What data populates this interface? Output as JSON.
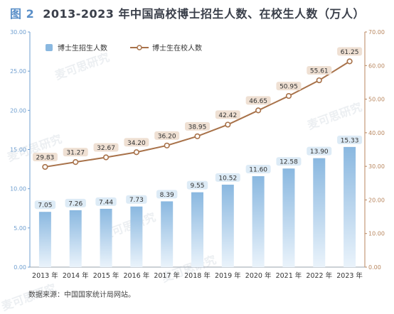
{
  "figure_label": "图 2",
  "title": "2013-2023 年中国高校博士招生人数、在校生人数（万人）",
  "source": "数据来源：中国国家统计局网站。",
  "watermark": "麦可思研究",
  "colors": {
    "bar_top": "#8ab8e0",
    "bar_bottom": "#eaf3fb",
    "line": "#a8724a",
    "label_blue_bg": "#ddebf6",
    "label_tan_bg": "#efe0d3",
    "left_axis": "#6f9fd0",
    "right_axis": "#b8865e"
  },
  "chart_data": {
    "type": "bar+line",
    "categories": [
      "2013 年",
      "2014 年",
      "2015 年",
      "2016 年",
      "2017 年",
      "2018 年",
      "2019 年",
      "2020 年",
      "2021 年",
      "2022 年",
      "2023 年"
    ],
    "series": [
      {
        "name": "博士生招生人数",
        "type": "bar",
        "axis": "left",
        "values": [
          7.05,
          7.26,
          7.44,
          7.73,
          8.39,
          9.55,
          10.52,
          11.6,
          12.58,
          13.9,
          15.33
        ],
        "labels": [
          "7.05",
          "7.26",
          "7.44",
          "7.73",
          "8.39",
          "9.55",
          "10.52",
          "11.60",
          "12.58",
          "13.90",
          "15.33"
        ]
      },
      {
        "name": "博士生在校人数",
        "type": "line",
        "axis": "right",
        "values": [
          29.83,
          31.27,
          32.67,
          34.2,
          36.2,
          38.95,
          42.42,
          46.65,
          50.95,
          55.61,
          61.25
        ],
        "labels": [
          "29.83",
          "31.27",
          "32.67",
          "34.20",
          "36.20",
          "38.95",
          "42.42",
          "46.65",
          "50.95",
          "55.61",
          "61.25"
        ]
      }
    ],
    "left_axis": {
      "ylim": [
        0,
        30
      ],
      "ticks": [
        "0.00",
        "5.00",
        "10.00",
        "15.00",
        "20.00",
        "25.00",
        "30.00"
      ]
    },
    "right_axis": {
      "ylim": [
        0,
        70
      ],
      "ticks": [
        "0.00",
        "10.00",
        "20.00",
        "30.00",
        "40.00",
        "50.00",
        "60.00",
        "70.00"
      ]
    },
    "grid": false,
    "legend_position": "top-left"
  }
}
